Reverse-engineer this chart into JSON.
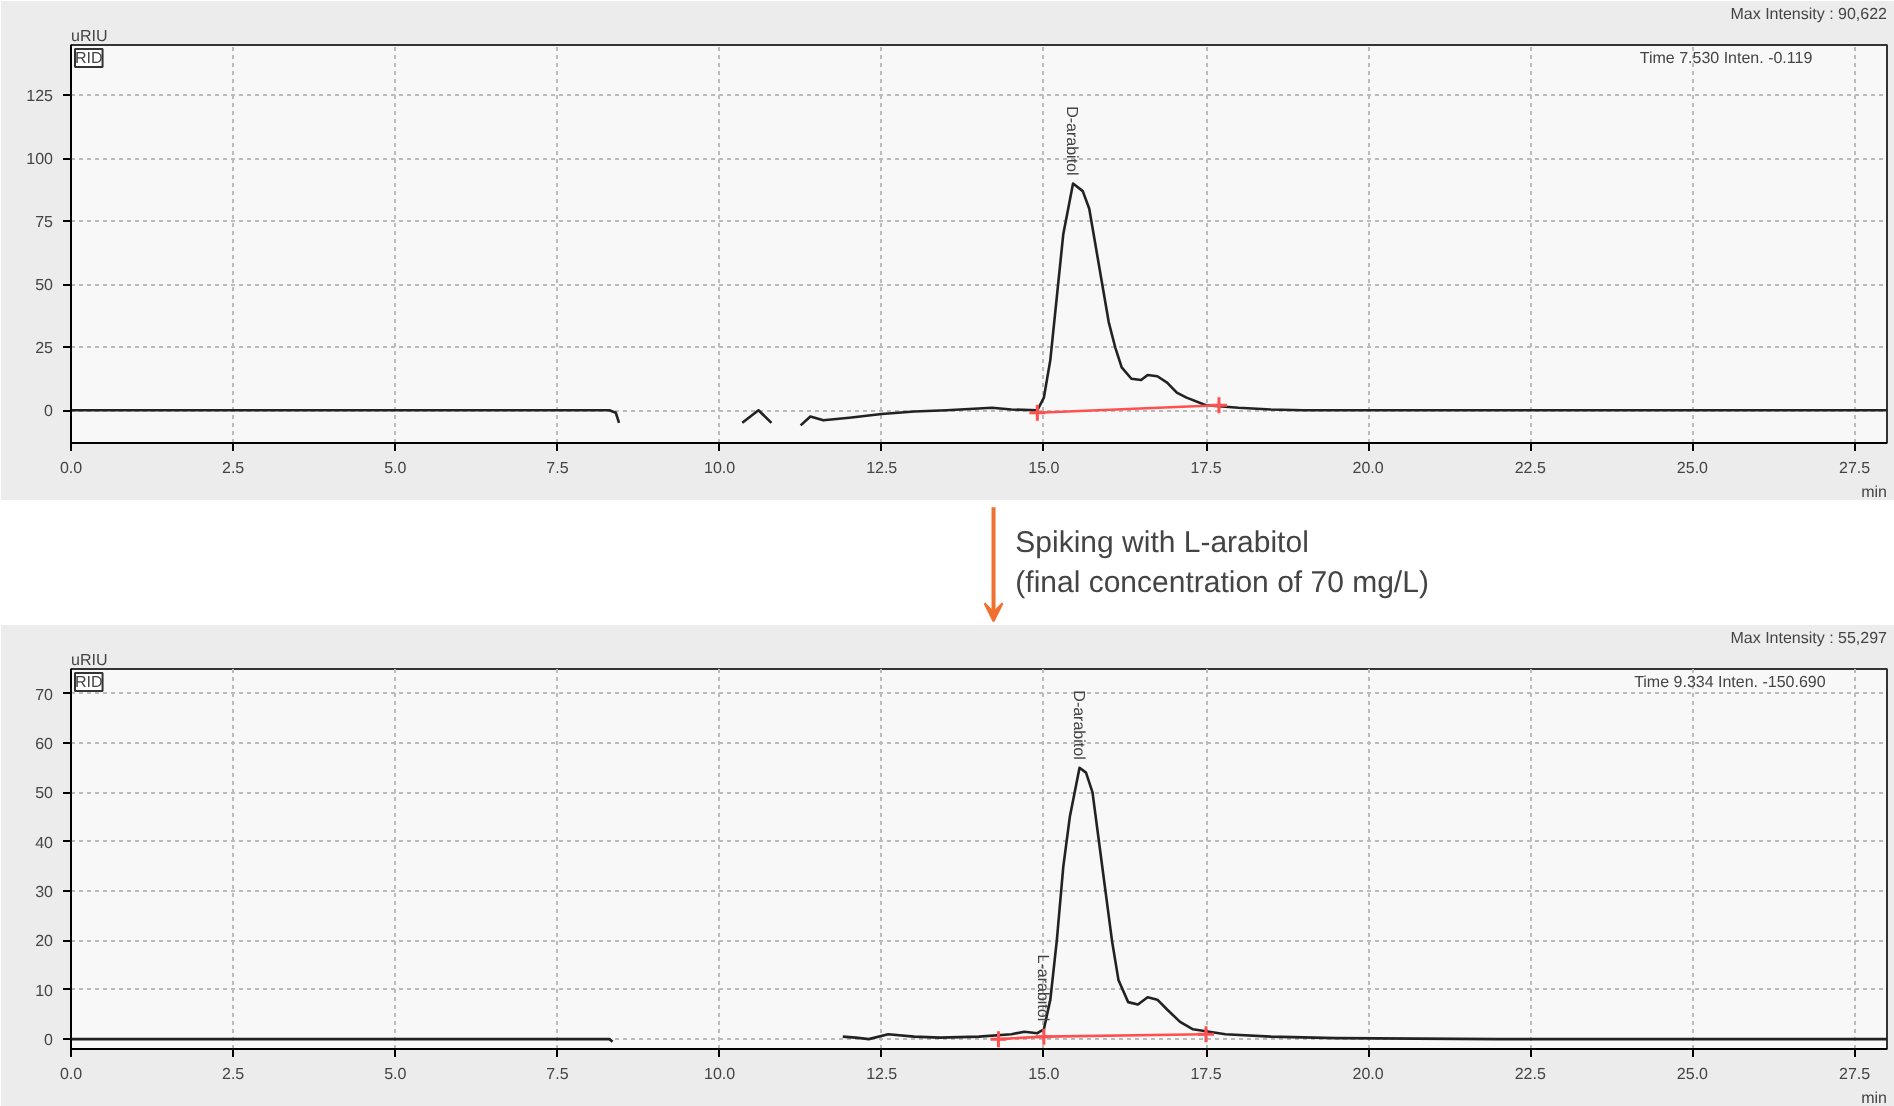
{
  "chart_data": [
    {
      "type": "line",
      "xlabel": "min",
      "ylabel": "uRIU",
      "xlim": [
        0,
        28
      ],
      "ylim": [
        -13,
        145
      ],
      "xticks": [
        {
          "value": 0,
          "label": "0.0"
        },
        {
          "value": 2.5,
          "label": "2.5"
        },
        {
          "value": 5,
          "label": "5.0"
        },
        {
          "value": 7.5,
          "label": "7.5"
        },
        {
          "value": 10,
          "label": "10.0"
        },
        {
          "value": 12.5,
          "label": "12.5"
        },
        {
          "value": 15,
          "label": "15.0"
        },
        {
          "value": 17.5,
          "label": "17.5"
        },
        {
          "value": 20,
          "label": "20.0"
        },
        {
          "value": 22.5,
          "label": "22.5"
        },
        {
          "value": 25,
          "label": "25.0"
        },
        {
          "value": 27.5,
          "label": "27.5"
        }
      ],
      "yticks": [
        0,
        25,
        50,
        75,
        100,
        125
      ],
      "grid": true,
      "series": [
        {
          "color": "#222222",
          "x": [
            0,
            8.3,
            8.4,
            8.45,
            null,
            10.35,
            10.6,
            10.8,
            null,
            11.25,
            11.4,
            11.6,
            12.0,
            12.5,
            13.0,
            13.5,
            14.2,
            14.5,
            14.9,
            15.0,
            15.1,
            15.2,
            15.3,
            15.45,
            15.6,
            15.7,
            15.8,
            15.9,
            16.0,
            16.1,
            16.2,
            16.35,
            16.5,
            16.6,
            16.75,
            16.9,
            17.05,
            17.2,
            17.5,
            18.0,
            18.5,
            19.0,
            28
          ],
          "values": [
            0,
            0,
            -1,
            -5,
            null,
            -5,
            0,
            -5,
            null,
            -6,
            -2.5,
            -4,
            -3,
            -1.5,
            -0.5,
            0,
            1,
            0.3,
            0,
            5,
            20,
            45,
            70,
            90,
            87,
            80,
            65,
            50,
            35,
            25,
            17,
            12.5,
            12,
            14,
            13.5,
            11,
            7,
            5,
            2,
            1,
            0.3,
            0,
            0
          ]
        },
        {
          "color": "#ff5050",
          "marker": "cross",
          "x": [
            14.9,
            17.7
          ],
          "values": [
            -1,
            2
          ]
        }
      ],
      "annotations": [
        {
          "text": "D-arabitol",
          "x": 15.45,
          "y": 90
        },
        "Max Intensity : 90,622",
        "Time     7.530   Inten.          -0.119",
        "RID"
      ]
    },
    {
      "type": "line",
      "subtitle": "Spiking with L-arabitol\n(final concentration of 70 mg/L)",
      "xlabel": "min",
      "ylabel": "uRIU",
      "xlim": [
        0,
        28
      ],
      "ylim": [
        -2,
        75
      ],
      "xticks": [
        {
          "value": 0,
          "label": "0.0"
        },
        {
          "value": 2.5,
          "label": "2.5"
        },
        {
          "value": 5,
          "label": "5.0"
        },
        {
          "value": 7.5,
          "label": "7.5"
        },
        {
          "value": 10,
          "label": "10.0"
        },
        {
          "value": 12.5,
          "label": "12.5"
        },
        {
          "value": 15,
          "label": "15.0"
        },
        {
          "value": 17.5,
          "label": "17.5"
        },
        {
          "value": 20,
          "label": "20.0"
        },
        {
          "value": 22.5,
          "label": "22.5"
        },
        {
          "value": 25,
          "label": "25.0"
        },
        {
          "value": 27.5,
          "label": "27.5"
        }
      ],
      "yticks": [
        0,
        10,
        20,
        30,
        40,
        50,
        60,
        70
      ],
      "grid": true,
      "series": [
        {
          "color": "#222222",
          "x": [
            0,
            8.3,
            8.35,
            null,
            11.9,
            12.1,
            12.3,
            12.6,
            13.0,
            13.4,
            14.0,
            14.5,
            14.7,
            14.9,
            15.0,
            15.1,
            15.2,
            15.3,
            15.4,
            15.55,
            15.65,
            15.75,
            15.85,
            15.95,
            16.05,
            16.15,
            16.3,
            16.45,
            16.6,
            16.75,
            16.9,
            17.1,
            17.3,
            17.8,
            18.5,
            19.5,
            22,
            28
          ],
          "values": [
            0,
            0,
            -0.5,
            null,
            0.5,
            0.3,
            0,
            1,
            0.5,
            0.3,
            0.5,
            1,
            1.5,
            1.2,
            2,
            8,
            20,
            35,
            45,
            55,
            54,
            50,
            40,
            30,
            20,
            12,
            7.5,
            7,
            8.5,
            8,
            6,
            3.5,
            2,
            1,
            0.5,
            0.2,
            0,
            0
          ]
        },
        {
          "color": "#ff5050",
          "marker": "cross",
          "x": [
            14.3,
            15.0,
            17.5
          ],
          "values": [
            0,
            0.5,
            1
          ]
        }
      ],
      "annotations": [
        {
          "text": "L-arabitol",
          "x": 15.0,
          "y": 2
        },
        {
          "text": "D-arabitol",
          "x": 15.55,
          "y": 55
        },
        "Max Intensity : 55,297",
        "Time     9.334   Inten.       -150.690",
        "RID"
      ]
    }
  ]
}
